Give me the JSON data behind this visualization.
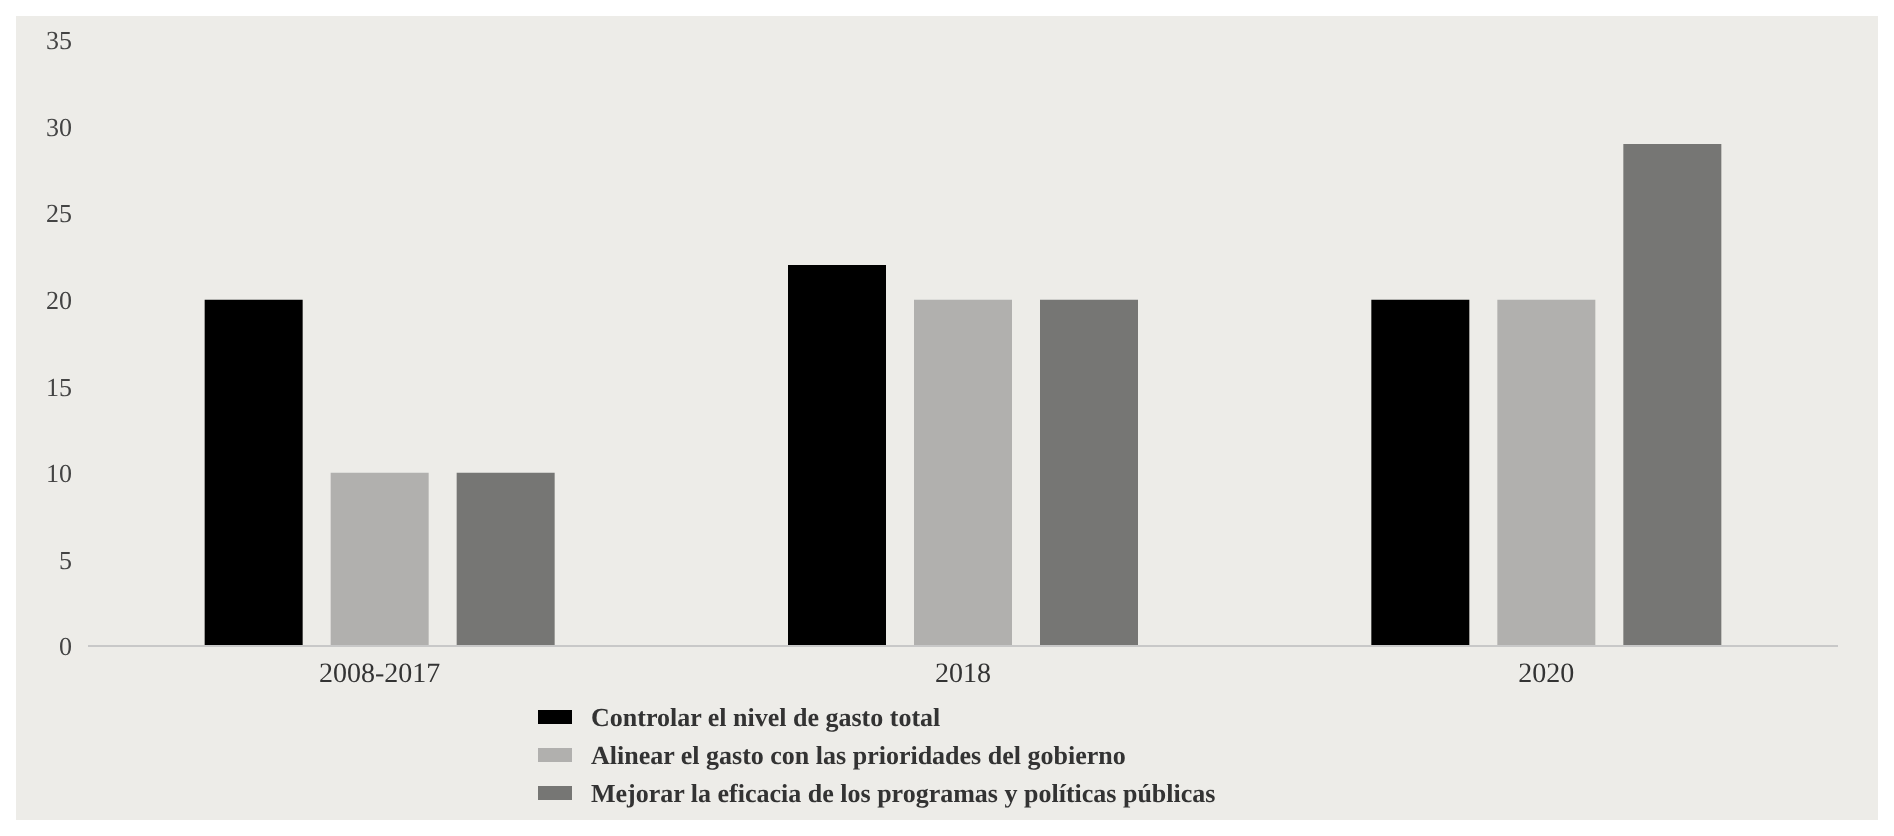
{
  "chart_data": {
    "type": "bar",
    "categories": [
      "2008-2017",
      "2018",
      "2020"
    ],
    "series": [
      {
        "name": "Controlar el nivel de gasto total",
        "color": "#000000",
        "values": [
          20,
          22,
          20
        ]
      },
      {
        "name": "Alinear el gasto con las prioridades del gobierno",
        "color": "#b1b0ae",
        "values": [
          10,
          20,
          20
        ]
      },
      {
        "name": "Mejorar la eficacia de los programas y políticas públicas",
        "color": "#767674",
        "values": [
          10,
          20,
          29
        ]
      }
    ],
    "ylim": [
      0,
      35
    ],
    "yticks": [
      0,
      5,
      10,
      15,
      20,
      25,
      30,
      35
    ],
    "grid": false,
    "legend": "bottom"
  }
}
